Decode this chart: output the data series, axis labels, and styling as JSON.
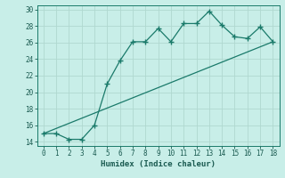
{
  "xlabel": "Humidex (Indice chaleur)",
  "bg_color": "#c8eee8",
  "line_color": "#1a7a6a",
  "grid_color": "#b0d8d0",
  "xlim": [
    -0.5,
    18.5
  ],
  "ylim": [
    13.5,
    30.5
  ],
  "yticks": [
    14,
    16,
    18,
    20,
    22,
    24,
    26,
    28,
    30
  ],
  "xticks": [
    0,
    1,
    2,
    3,
    4,
    5,
    6,
    7,
    8,
    9,
    10,
    11,
    12,
    13,
    14,
    15,
    16,
    17,
    18
  ],
  "line1_x": [
    0,
    1,
    2,
    3,
    4,
    5,
    6,
    7,
    8,
    9,
    10,
    11,
    12,
    13,
    14,
    15,
    16,
    17,
    18
  ],
  "line1_y": [
    15.0,
    15.0,
    14.3,
    14.3,
    16.0,
    21.0,
    23.8,
    26.1,
    26.1,
    27.7,
    26.1,
    28.3,
    28.3,
    29.8,
    28.1,
    26.7,
    26.5,
    27.9,
    26.1
  ],
  "line2_x": [
    0,
    18
  ],
  "line2_y": [
    15.0,
    26.1
  ]
}
